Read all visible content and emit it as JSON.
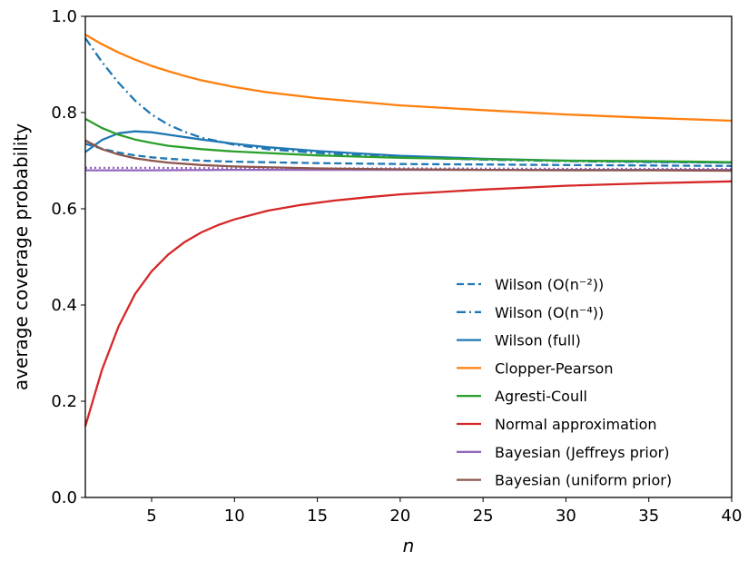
{
  "chart_data": {
    "type": "line",
    "xlabel": "n",
    "ylabel": "average coverage probability",
    "xlim": [
      1,
      40
    ],
    "ylim": [
      0.0,
      1.0
    ],
    "xticks": [
      "5",
      "10",
      "15",
      "20",
      "25",
      "30",
      "35",
      "40"
    ],
    "yticks": [
      "0.0",
      "0.2",
      "0.4",
      "0.6",
      "0.8",
      "1.0"
    ],
    "grid": false,
    "legend_position": "lower-right",
    "series": [
      {
        "name": "Wilson (O(n⁻²))",
        "color": "#1f77b4",
        "dash": "dashed",
        "points": [
          [
            1,
            0.735
          ],
          [
            2,
            0.725
          ],
          [
            3,
            0.717
          ],
          [
            4,
            0.711
          ],
          [
            5,
            0.707
          ],
          [
            6,
            0.704
          ],
          [
            8,
            0.7
          ],
          [
            10,
            0.698
          ],
          [
            15,
            0.695
          ],
          [
            20,
            0.693
          ],
          [
            25,
            0.692
          ],
          [
            30,
            0.691
          ],
          [
            35,
            0.69
          ],
          [
            40,
            0.689
          ]
        ]
      },
      {
        "name": "Wilson (O(n⁻⁴))",
        "color": "#1f77b4",
        "dash": "dashdot",
        "points": [
          [
            1,
            0.955
          ],
          [
            2,
            0.905
          ],
          [
            3,
            0.862
          ],
          [
            4,
            0.825
          ],
          [
            5,
            0.796
          ],
          [
            6,
            0.775
          ],
          [
            7,
            0.76
          ],
          [
            8,
            0.748
          ],
          [
            10,
            0.733
          ],
          [
            12,
            0.724
          ],
          [
            15,
            0.716
          ],
          [
            20,
            0.707
          ],
          [
            25,
            0.702
          ],
          [
            30,
            0.699
          ],
          [
            35,
            0.697
          ],
          [
            40,
            0.696
          ]
        ]
      },
      {
        "name": "Wilson (full)",
        "color": "#1f77b4",
        "dash": "solid",
        "points": [
          [
            1,
            0.718
          ],
          [
            2,
            0.743
          ],
          [
            3,
            0.757
          ],
          [
            4,
            0.761
          ],
          [
            5,
            0.759
          ],
          [
            6,
            0.754
          ],
          [
            8,
            0.744
          ],
          [
            10,
            0.735
          ],
          [
            12,
            0.728
          ],
          [
            15,
            0.72
          ],
          [
            20,
            0.71
          ],
          [
            25,
            0.704
          ],
          [
            30,
            0.7
          ],
          [
            35,
            0.698
          ],
          [
            40,
            0.696
          ]
        ]
      },
      {
        "name": "Clopper-Pearson",
        "color": "#ff7f0e",
        "dash": "solid",
        "points": [
          [
            1,
            0.962
          ],
          [
            2,
            0.942
          ],
          [
            3,
            0.925
          ],
          [
            4,
            0.91
          ],
          [
            5,
            0.897
          ],
          [
            6,
            0.886
          ],
          [
            7,
            0.876
          ],
          [
            8,
            0.867
          ],
          [
            10,
            0.853
          ],
          [
            12,
            0.842
          ],
          [
            15,
            0.83
          ],
          [
            20,
            0.815
          ],
          [
            25,
            0.805
          ],
          [
            30,
            0.796
          ],
          [
            35,
            0.789
          ],
          [
            40,
            0.783
          ]
        ]
      },
      {
        "name": "Agresti-Coull",
        "color": "#2ca02c",
        "dash": "solid",
        "points": [
          [
            1,
            0.787
          ],
          [
            2,
            0.768
          ],
          [
            3,
            0.754
          ],
          [
            4,
            0.744
          ],
          [
            5,
            0.737
          ],
          [
            6,
            0.731
          ],
          [
            8,
            0.724
          ],
          [
            10,
            0.719
          ],
          [
            15,
            0.711
          ],
          [
            20,
            0.706
          ],
          [
            25,
            0.703
          ],
          [
            30,
            0.7
          ],
          [
            35,
            0.699
          ],
          [
            40,
            0.697
          ]
        ]
      },
      {
        "name": "Normal approximation",
        "color": "#d62728",
        "dash": "solid",
        "points": [
          [
            1,
            0.148
          ],
          [
            2,
            0.265
          ],
          [
            3,
            0.355
          ],
          [
            4,
            0.423
          ],
          [
            5,
            0.47
          ],
          [
            6,
            0.505
          ],
          [
            7,
            0.531
          ],
          [
            8,
            0.551
          ],
          [
            9,
            0.566
          ],
          [
            10,
            0.578
          ],
          [
            12,
            0.596
          ],
          [
            14,
            0.608
          ],
          [
            16,
            0.617
          ],
          [
            18,
            0.624
          ],
          [
            20,
            0.63
          ],
          [
            25,
            0.64
          ],
          [
            30,
            0.648
          ],
          [
            35,
            0.653
          ],
          [
            40,
            0.657
          ]
        ]
      },
      {
        "name": "Bayesian (Jeffreys prior)",
        "color": "#9467bd",
        "dash": "solid",
        "points": [
          [
            1,
            0.68
          ],
          [
            5,
            0.68
          ],
          [
            10,
            0.681
          ],
          [
            15,
            0.681
          ],
          [
            20,
            0.681
          ],
          [
            25,
            0.681
          ],
          [
            30,
            0.681
          ],
          [
            35,
            0.681
          ],
          [
            40,
            0.681
          ]
        ]
      },
      {
        "name": "",
        "color": "#9467bd",
        "dash": "dotted",
        "legend": false,
        "points": [
          [
            1,
            0.685
          ],
          [
            5,
            0.685
          ],
          [
            10,
            0.684
          ],
          [
            20,
            0.684
          ],
          [
            30,
            0.683
          ],
          [
            40,
            0.683
          ]
        ]
      },
      {
        "name": "Bayesian (uniform prior)",
        "color": "#8c564b",
        "dash": "solid",
        "points": [
          [
            1,
            0.742
          ],
          [
            2,
            0.724
          ],
          [
            3,
            0.713
          ],
          [
            4,
            0.705
          ],
          [
            5,
            0.7
          ],
          [
            6,
            0.696
          ],
          [
            8,
            0.691
          ],
          [
            10,
            0.688
          ],
          [
            15,
            0.684
          ],
          [
            20,
            0.682
          ],
          [
            25,
            0.681
          ],
          [
            30,
            0.68
          ],
          [
            35,
            0.68
          ],
          [
            40,
            0.679
          ]
        ]
      }
    ]
  }
}
